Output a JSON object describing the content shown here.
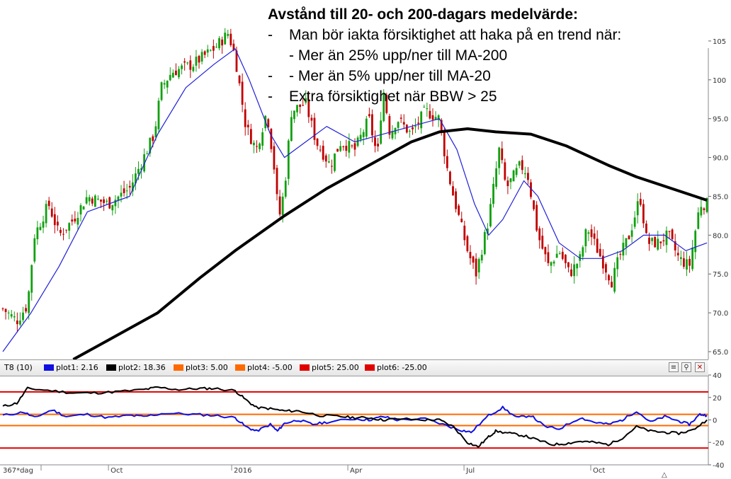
{
  "annotation": {
    "title": "Avstånd till 20- och 200-dagars medelvärde:",
    "items": [
      {
        "marker": "-",
        "text": "Man bör iakta försiktighet att haka på en trend när:"
      },
      {
        "marker": "",
        "text": "- Mer än 25% upp/ner till MA-200"
      },
      {
        "marker": "-",
        "text": "- Mer än 5% upp/ner till MA-20"
      },
      {
        "marker": "-",
        "text": "Extra försiktighet när BBW > 25"
      }
    ]
  },
  "indicator_bar": {
    "name": "T8 (10)",
    "legend": [
      {
        "label": "plot1: 2.16",
        "color": "#1010e0"
      },
      {
        "label": "plot2: 18.36",
        "color": "#000000"
      },
      {
        "label": "plot3: 5.00",
        "color": "#ff6a00"
      },
      {
        "label": "plot4: -5.00",
        "color": "#ff6a00"
      },
      {
        "label": "plot5: 25.00",
        "color": "#e00000"
      },
      {
        "label": "plot6: -25.00",
        "color": "#e00000"
      }
    ],
    "buttons": [
      {
        "name": "properties-icon",
        "glyph": "≡"
      },
      {
        "name": "magnify-icon",
        "glyph": "⚲"
      },
      {
        "name": "close-icon",
        "glyph": "✕"
      }
    ]
  },
  "x_axis": {
    "period_label": "367*dag",
    "labels": [
      {
        "text": "Oct",
        "t": 0.15
      },
      {
        "text": "2016",
        "t": 0.325
      },
      {
        "text": "Apr",
        "t": 0.49
      },
      {
        "text": "Jul",
        "t": 0.655
      },
      {
        "text": "Oct",
        "t": 0.835
      }
    ],
    "scroll_icon": "triangle-up-icon",
    "scroll_glyph": "△"
  },
  "chart_data": [
    {
      "type": "candlestick",
      "title": "",
      "ylim": [
        64,
        109
      ],
      "yticks": [
        "65.0",
        "70.0",
        "75.0",
        "80.0",
        "85.0",
        "90.0",
        "95.0",
        "100",
        "105"
      ],
      "up_color": "#10a010",
      "down_color": "#c00000",
      "close_anchors": [
        [
          0,
          70.5
        ],
        [
          0.02,
          69
        ],
        [
          0.035,
          71
        ],
        [
          0.045,
          80
        ],
        [
          0.065,
          84
        ],
        [
          0.08,
          80
        ],
        [
          0.1,
          82
        ],
        [
          0.12,
          85
        ],
        [
          0.15,
          84
        ],
        [
          0.18,
          86
        ],
        [
          0.2,
          90
        ],
        [
          0.215,
          93
        ],
        [
          0.225,
          99
        ],
        [
          0.24,
          101
        ],
        [
          0.27,
          102
        ],
        [
          0.3,
          104
        ],
        [
          0.32,
          106
        ],
        [
          0.33,
          103
        ],
        [
          0.345,
          94
        ],
        [
          0.36,
          91
        ],
        [
          0.375,
          96
        ],
        [
          0.385,
          89
        ],
        [
          0.392,
          82
        ],
        [
          0.4,
          86
        ],
        [
          0.41,
          96
        ],
        [
          0.43,
          97
        ],
        [
          0.445,
          92
        ],
        [
          0.465,
          89
        ],
        [
          0.48,
          92
        ],
        [
          0.5,
          91
        ],
        [
          0.52,
          95
        ],
        [
          0.532,
          90
        ],
        [
          0.54,
          99
        ],
        [
          0.55,
          93
        ],
        [
          0.56,
          95
        ],
        [
          0.58,
          93
        ],
        [
          0.6,
          96
        ],
        [
          0.62,
          95
        ],
        [
          0.63,
          89
        ],
        [
          0.64,
          85
        ],
        [
          0.66,
          78
        ],
        [
          0.672,
          75
        ],
        [
          0.69,
          82
        ],
        [
          0.705,
          91
        ],
        [
          0.715,
          86
        ],
        [
          0.735,
          89
        ],
        [
          0.745,
          88
        ],
        [
          0.76,
          80
        ],
        [
          0.775,
          76
        ],
        [
          0.79,
          78
        ],
        [
          0.805,
          75
        ],
        [
          0.82,
          77
        ],
        [
          0.83,
          81
        ],
        [
          0.84,
          79
        ],
        [
          0.855,
          76
        ],
        [
          0.865,
          74
        ],
        [
          0.875,
          77
        ],
        [
          0.89,
          80
        ],
        [
          0.905,
          85
        ],
        [
          0.915,
          79
        ],
        [
          0.93,
          79
        ],
        [
          0.945,
          80
        ],
        [
          0.96,
          77
        ],
        [
          0.975,
          76
        ],
        [
          0.99,
          84
        ],
        [
          1.0,
          84
        ]
      ],
      "series": [
        {
          "name": "MA-20",
          "color": "#2020d8",
          "points": [
            [
              0,
              65
            ],
            [
              0.04,
              70
            ],
            [
              0.08,
              76
            ],
            [
              0.12,
              83
            ],
            [
              0.18,
              85
            ],
            [
              0.22,
              93
            ],
            [
              0.26,
              99
            ],
            [
              0.3,
              102
            ],
            [
              0.33,
              104
            ],
            [
              0.35,
              100
            ],
            [
              0.38,
              93
            ],
            [
              0.4,
              90
            ],
            [
              0.43,
              92
            ],
            [
              0.46,
              94
            ],
            [
              0.5,
              92
            ],
            [
              0.54,
              93
            ],
            [
              0.58,
              94
            ],
            [
              0.62,
              95
            ],
            [
              0.645,
              91
            ],
            [
              0.67,
              84
            ],
            [
              0.69,
              80
            ],
            [
              0.71,
              82
            ],
            [
              0.74,
              87
            ],
            [
              0.76,
              85
            ],
            [
              0.79,
              79
            ],
            [
              0.82,
              77
            ],
            [
              0.85,
              77
            ],
            [
              0.88,
              78
            ],
            [
              0.91,
              80
            ],
            [
              0.94,
              80
            ],
            [
              0.97,
              78
            ],
            [
              1.0,
              79
            ]
          ]
        },
        {
          "name": "MA-200",
          "color": "#000000",
          "points": [
            [
              0.1,
              64
            ],
            [
              0.15,
              66.5
            ],
            [
              0.22,
              70
            ],
            [
              0.28,
              74.5
            ],
            [
              0.33,
              78
            ],
            [
              0.4,
              82.5
            ],
            [
              0.46,
              86
            ],
            [
              0.52,
              89
            ],
            [
              0.58,
              92
            ],
            [
              0.62,
              93.3
            ],
            [
              0.66,
              93.7
            ],
            [
              0.7,
              93.3
            ],
            [
              0.75,
              93
            ],
            [
              0.8,
              91.5
            ],
            [
              0.86,
              89
            ],
            [
              0.9,
              87.5
            ],
            [
              0.95,
              86
            ],
            [
              1.0,
              84.5
            ]
          ]
        }
      ]
    },
    {
      "type": "line",
      "title": "",
      "ylim": [
        -40,
        40
      ],
      "yticks": [
        "40",
        "20",
        "0",
        "-20",
        "-40"
      ],
      "series": [
        {
          "name": "plot1",
          "color": "#1010e0",
          "points": [
            [
              0,
              4
            ],
            [
              0.03,
              7
            ],
            [
              0.045,
              2
            ],
            [
              0.07,
              9
            ],
            [
              0.09,
              3
            ],
            [
              0.12,
              5
            ],
            [
              0.15,
              2
            ],
            [
              0.18,
              4
            ],
            [
              0.2,
              3
            ],
            [
              0.23,
              6
            ],
            [
              0.27,
              5
            ],
            [
              0.3,
              4
            ],
            [
              0.33,
              2
            ],
            [
              0.345,
              -6
            ],
            [
              0.36,
              -10
            ],
            [
              0.38,
              -4
            ],
            [
              0.39,
              -10
            ],
            [
              0.4,
              -3
            ],
            [
              0.42,
              0
            ],
            [
              0.44,
              -4
            ],
            [
              0.46,
              -2
            ],
            [
              0.5,
              1
            ],
            [
              0.52,
              0
            ],
            [
              0.54,
              3
            ],
            [
              0.56,
              0
            ],
            [
              0.6,
              1
            ],
            [
              0.63,
              -5
            ],
            [
              0.65,
              -9
            ],
            [
              0.665,
              -11
            ],
            [
              0.69,
              4
            ],
            [
              0.71,
              11
            ],
            [
              0.73,
              2
            ],
            [
              0.75,
              4
            ],
            [
              0.77,
              -6
            ],
            [
              0.79,
              -8
            ],
            [
              0.82,
              2
            ],
            [
              0.84,
              -2
            ],
            [
              0.86,
              -4
            ],
            [
              0.88,
              0
            ],
            [
              0.9,
              8
            ],
            [
              0.92,
              -2
            ],
            [
              0.94,
              3
            ],
            [
              0.96,
              -1
            ],
            [
              0.975,
              -4
            ],
            [
              0.99,
              5
            ],
            [
              1.0,
              4
            ]
          ]
        },
        {
          "name": "plot2",
          "color": "#000000",
          "points": [
            [
              0,
              12
            ],
            [
              0.02,
              15
            ],
            [
              0.035,
              28
            ],
            [
              0.07,
              26
            ],
            [
              0.1,
              24
            ],
            [
              0.13,
              24
            ],
            [
              0.16,
              25
            ],
            [
              0.2,
              27
            ],
            [
              0.22,
              29
            ],
            [
              0.25,
              27
            ],
            [
              0.28,
              28
            ],
            [
              0.3,
              28
            ],
            [
              0.33,
              26
            ],
            [
              0.345,
              18
            ],
            [
              0.36,
              11
            ],
            [
              0.38,
              10
            ],
            [
              0.4,
              8
            ],
            [
              0.42,
              8
            ],
            [
              0.45,
              4
            ],
            [
              0.48,
              3
            ],
            [
              0.5,
              2
            ],
            [
              0.52,
              2
            ],
            [
              0.54,
              0
            ],
            [
              0.56,
              1
            ],
            [
              0.6,
              0
            ],
            [
              0.62,
              0
            ],
            [
              0.64,
              -6
            ],
            [
              0.66,
              -20
            ],
            [
              0.675,
              -24
            ],
            [
              0.69,
              -15
            ],
            [
              0.7,
              -10
            ],
            [
              0.72,
              -12
            ],
            [
              0.74,
              -14
            ],
            [
              0.76,
              -18
            ],
            [
              0.78,
              -22
            ],
            [
              0.8,
              -21
            ],
            [
              0.82,
              -19
            ],
            [
              0.84,
              -20
            ],
            [
              0.86,
              -22
            ],
            [
              0.88,
              -16
            ],
            [
              0.9,
              -6
            ],
            [
              0.92,
              -10
            ],
            [
              0.94,
              -11
            ],
            [
              0.96,
              -12
            ],
            [
              0.98,
              -9
            ],
            [
              1.0,
              0
            ]
          ]
        }
      ],
      "reference_lines": [
        {
          "name": "plot3",
          "value": 5,
          "color": "#ff6a00"
        },
        {
          "name": "plot4",
          "value": -5,
          "color": "#ff6a00"
        },
        {
          "name": "plot5",
          "value": 25,
          "color": "#e00000"
        },
        {
          "name": "plot6",
          "value": -25,
          "color": "#e00000"
        }
      ]
    }
  ]
}
